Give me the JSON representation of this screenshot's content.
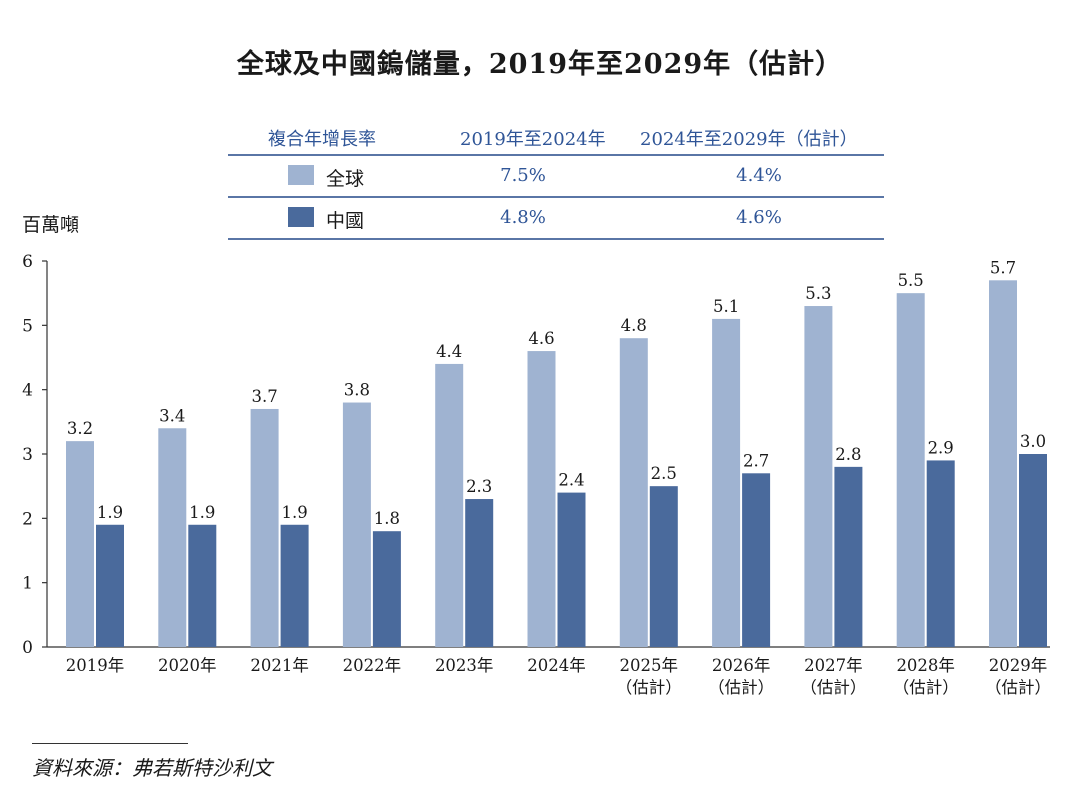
{
  "title": "全球及中國鎢儲量，2019年至2029年（估計）",
  "cagr_table": {
    "header": [
      "複合年增長率",
      "2019年至2024年",
      "2024年至2029年（估計）"
    ],
    "rows": [
      {
        "label": "全球",
        "color": "#9fb3d1",
        "cagr_2019_2024": "7.5%",
        "cagr_2024_2029": "4.4%"
      },
      {
        "label": "中國",
        "color": "#4a6a9c",
        "cagr_2019_2024": "4.8%",
        "cagr_2024_2029": "4.6%"
      }
    ]
  },
  "source": "資料來源：弗若斯特沙利文",
  "chart_data": {
    "type": "bar",
    "ylabel": "百萬噸",
    "ylim": [
      0,
      6
    ],
    "yticks": [
      0,
      1,
      2,
      3,
      4,
      5,
      6
    ],
    "categories": [
      [
        "2019年"
      ],
      [
        "2020年"
      ],
      [
        "2021年"
      ],
      [
        "2022年"
      ],
      [
        "2023年"
      ],
      [
        "2024年"
      ],
      [
        "2025年",
        "（估計）"
      ],
      [
        "2026年",
        "（估計）"
      ],
      [
        "2027年",
        "（估計）"
      ],
      [
        "2028年",
        "（估計）"
      ],
      [
        "2029年",
        "（估計）"
      ]
    ],
    "series": [
      {
        "name": "全球",
        "color": "#9fb3d1",
        "values": [
          3.2,
          3.4,
          3.7,
          3.8,
          4.4,
          4.6,
          4.8,
          5.1,
          5.3,
          5.5,
          5.7
        ]
      },
      {
        "name": "中國",
        "color": "#4a6a9c",
        "values": [
          1.9,
          1.9,
          1.9,
          1.8,
          2.3,
          2.4,
          2.5,
          2.7,
          2.8,
          2.9,
          3.0
        ]
      }
    ],
    "grid": false,
    "legend": "table above chart"
  }
}
